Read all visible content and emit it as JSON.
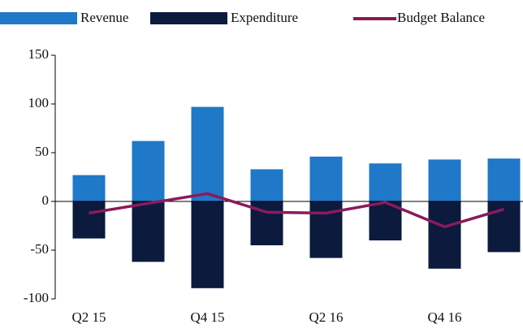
{
  "chart_data": {
    "type": "bar_line",
    "categories": [
      "Q2 15",
      null,
      "Q4 15",
      null,
      "Q2 16",
      null,
      "Q4 16",
      null
    ],
    "series": [
      {
        "name": "Revenue",
        "color": "#1f78c8",
        "type": "bar",
        "values": [
          27,
          62,
          97,
          33,
          46,
          39,
          43,
          44
        ]
      },
      {
        "name": "Expenditure",
        "color": "#0b1a3d",
        "type": "bar",
        "values": [
          -38,
          -62,
          -89,
          -45,
          -58,
          -40,
          -69,
          -52
        ]
      },
      {
        "name": "Budget Balance",
        "color": "#8b1a5a",
        "type": "line",
        "values": [
          -12,
          -2,
          8,
          -11,
          -12,
          -1,
          -26,
          -8
        ]
      }
    ],
    "ylim": [
      -100,
      150
    ],
    "yticks": [
      -100,
      -50,
      0,
      50,
      100,
      150
    ],
    "legend": "top"
  }
}
